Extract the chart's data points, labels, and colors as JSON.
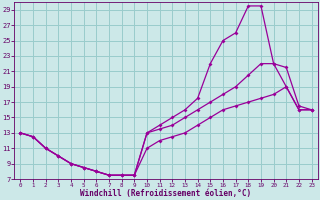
{
  "xlabel": "Windchill (Refroidissement éolien,°C)",
  "background_color": "#cce8e8",
  "grid_color": "#99cccc",
  "line_color": "#990099",
  "xlim": [
    -0.5,
    23.5
  ],
  "ylim": [
    7,
    30
  ],
  "yticks": [
    7,
    9,
    11,
    13,
    15,
    17,
    19,
    21,
    23,
    25,
    27,
    29
  ],
  "xticks": [
    0,
    1,
    2,
    3,
    4,
    5,
    6,
    7,
    8,
    9,
    10,
    11,
    12,
    13,
    14,
    15,
    16,
    17,
    18,
    19,
    20,
    21,
    22,
    23
  ],
  "curve1_x": [
    0,
    1,
    2,
    3,
    4,
    5,
    6,
    7,
    8,
    9,
    10,
    11,
    12,
    13,
    14,
    15,
    16,
    17,
    18,
    19,
    20,
    21,
    22,
    23
  ],
  "curve1_y": [
    13,
    12.5,
    11,
    10,
    9.0,
    8.5,
    8.0,
    7.5,
    7.5,
    7.5,
    13,
    14,
    15,
    16,
    17.5,
    22,
    25,
    26,
    29.5,
    29.5,
    22,
    19,
    16,
    16
  ],
  "curve2_x": [
    0,
    1,
    2,
    3,
    4,
    5,
    6,
    7,
    8,
    9,
    10,
    11,
    12,
    13,
    14,
    15,
    16,
    17,
    18,
    19,
    20,
    21,
    22,
    23
  ],
  "curve2_y": [
    13,
    12.5,
    11,
    10,
    9.0,
    8.5,
    8.0,
    7.5,
    7.5,
    7.5,
    13,
    13.5,
    14,
    15,
    16,
    17,
    18,
    19,
    20.5,
    22,
    22,
    21.5,
    16.5,
    16
  ],
  "curve3_x": [
    0,
    1,
    2,
    3,
    4,
    5,
    6,
    7,
    8,
    9,
    10,
    11,
    12,
    13,
    14,
    15,
    16,
    17,
    18,
    19,
    20,
    21,
    22,
    23
  ],
  "curve3_y": [
    13,
    12.5,
    11,
    10,
    9.0,
    8.5,
    8.0,
    7.5,
    7.5,
    7.5,
    11,
    12,
    12.5,
    13,
    14,
    15,
    16,
    16.5,
    17,
    17.5,
    18,
    19,
    16,
    16
  ],
  "tick_fontsize": 5,
  "xlabel_fontsize": 5.5,
  "marker_size": 2.0,
  "line_width": 0.9
}
